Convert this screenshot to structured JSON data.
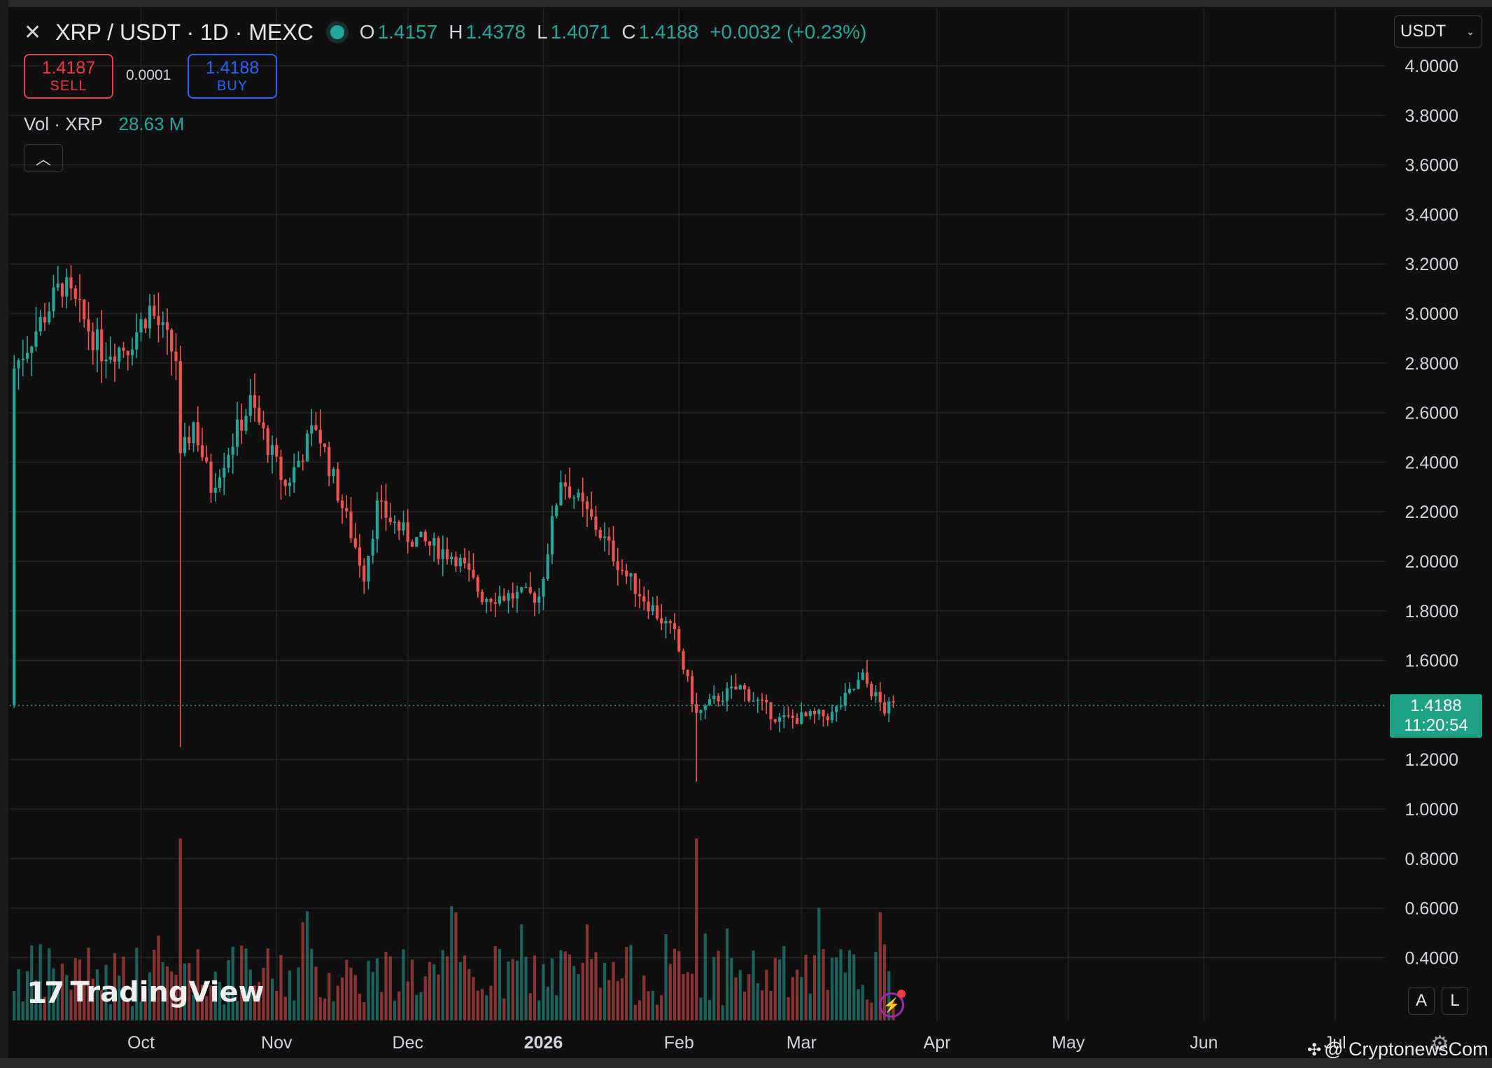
{
  "header": {
    "symbol": "XRP / USDT · 1D · MEXC",
    "ohlc": [
      {
        "key": "O",
        "value": "1.4157"
      },
      {
        "key": "H",
        "value": "1.4378"
      },
      {
        "key": "L",
        "value": "1.4071"
      },
      {
        "key": "C",
        "value": "1.4188"
      }
    ],
    "change": "+0.0032 (+0.23%)"
  },
  "trade": {
    "sell_price": "1.4187",
    "sell_label": "SELL",
    "spread": "0.0001",
    "buy_price": "1.4188",
    "buy_label": "BUY"
  },
  "volume": {
    "label": "Vol · XRP",
    "value": "28.63 M"
  },
  "currency": {
    "selected": "USDT"
  },
  "last_price": {
    "value": "1.4188",
    "countdown": "11:20:54"
  },
  "buttons": {
    "auto": "A",
    "log": "L"
  },
  "branding": {
    "logo_text": "TradingView",
    "watermark": "@ CryptonewsCom"
  },
  "colors": {
    "up": "#26a69a",
    "down": "#ef5350",
    "background": "#0f0f10",
    "grid": "#232325"
  },
  "chart_data": {
    "type": "candlestick",
    "y_ticks": [
      "4.0000",
      "3.8000",
      "3.6000",
      "3.4000",
      "3.2000",
      "3.0000",
      "2.8000",
      "2.6000",
      "2.4000",
      "2.2000",
      "2.0000",
      "1.8000",
      "1.6000",
      "1.2000",
      "1.0000",
      "0.8000",
      "0.6000",
      "0.4000"
    ],
    "ylim": [
      0.2,
      4.1
    ],
    "x_ticks": [
      {
        "label": "Oct",
        "date": "2025-10-01"
      },
      {
        "label": "Nov",
        "date": "2025-11-01"
      },
      {
        "label": "Dec",
        "date": "2025-12-01"
      },
      {
        "label": "2026",
        "date": "2026-01-01"
      },
      {
        "label": "Feb",
        "date": "2026-02-01"
      },
      {
        "label": "Mar",
        "date": "2026-03-01"
      },
      {
        "label": "Apr",
        "date": "2026-04-01"
      },
      {
        "label": "May",
        "date": "2026-05-01"
      },
      {
        "label": "Jun",
        "date": "2026-06-01"
      },
      {
        "label": "Jul",
        "date": "2026-07-01"
      }
    ],
    "close_anchors": [
      [
        "2025-09-02",
        2.78
      ],
      [
        "2025-09-13",
        3.12
      ],
      [
        "2025-09-22",
        2.85
      ],
      [
        "2025-09-28",
        2.87
      ],
      [
        "2025-10-03",
        3.02
      ],
      [
        "2025-10-09",
        2.82
      ],
      [
        "2025-10-10",
        2.4
      ],
      [
        "2025-10-13",
        2.56
      ],
      [
        "2025-10-17",
        2.3
      ],
      [
        "2025-10-26",
        2.64
      ],
      [
        "2025-11-03",
        2.3
      ],
      [
        "2025-11-10",
        2.55
      ],
      [
        "2025-11-21",
        1.95
      ],
      [
        "2025-11-24",
        2.22
      ],
      [
        "2025-12-01",
        2.1
      ],
      [
        "2025-12-12",
        2.02
      ],
      [
        "2025-12-18",
        1.86
      ],
      [
        "2025-12-31",
        1.86
      ],
      [
        "2026-01-05",
        2.34
      ],
      [
        "2026-01-13",
        2.14
      ],
      [
        "2026-01-20",
        1.94
      ],
      [
        "2026-01-31",
        1.7
      ],
      [
        "2026-02-05",
        1.38
      ],
      [
        "2026-02-10",
        1.45
      ],
      [
        "2026-02-15",
        1.49
      ],
      [
        "2026-02-24",
        1.36
      ],
      [
        "2026-03-08",
        1.38
      ],
      [
        "2026-03-15",
        1.53
      ],
      [
        "2026-03-20",
        1.4
      ],
      [
        "2026-03-22",
        1.4188
      ]
    ],
    "last_price": 1.4188
  }
}
